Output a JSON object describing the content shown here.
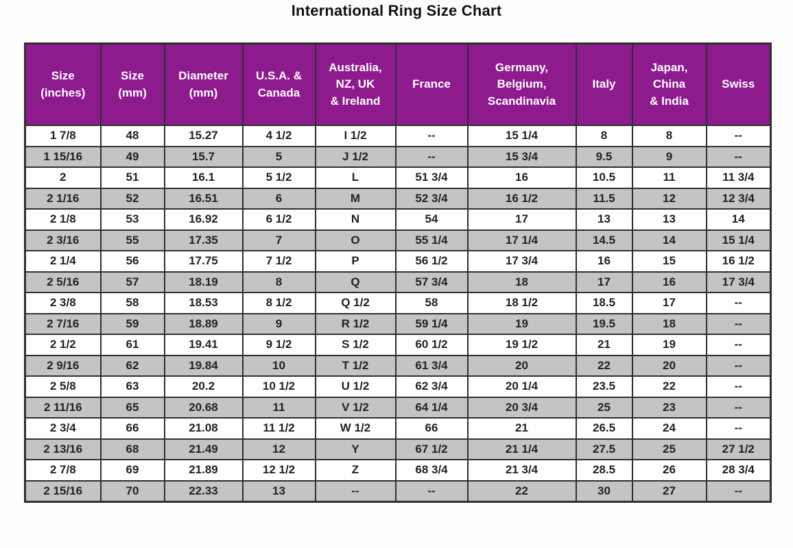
{
  "page": {
    "title": "International Ring Size Chart"
  },
  "chart_data": {
    "type": "table",
    "title": "International Ring Size Chart",
    "columns": [
      "Size\n(inches)",
      "Size\n(mm)",
      "Diameter\n(mm)",
      "U.S.A. &\nCanada",
      "Australia,\nNZ, UK\n& Ireland",
      "France",
      "Germany,\nBelgium,\nScandinavia",
      "Italy",
      "Japan,\nChina\n& India",
      "Swiss"
    ],
    "rows": [
      [
        "1 7/8",
        "48",
        "15.27",
        "4 1/2",
        "I 1/2",
        "--",
        "15 1/4",
        "8",
        "8",
        "--"
      ],
      [
        "1 15/16",
        "49",
        "15.7",
        "5",
        "J 1/2",
        "--",
        "15 3/4",
        "9.5",
        "9",
        "--"
      ],
      [
        "2",
        "51",
        "16.1",
        "5 1/2",
        "L",
        "51 3/4",
        "16",
        "10.5",
        "11",
        "11 3/4"
      ],
      [
        "2 1/16",
        "52",
        "16.51",
        "6",
        "M",
        "52 3/4",
        "16 1/2",
        "11.5",
        "12",
        "12 3/4"
      ],
      [
        "2 1/8",
        "53",
        "16.92",
        "6 1/2",
        "N",
        "54",
        "17",
        "13",
        "13",
        "14"
      ],
      [
        "2 3/16",
        "55",
        "17.35",
        "7",
        "O",
        "55 1/4",
        "17 1/4",
        "14.5",
        "14",
        "15 1/4"
      ],
      [
        "2 1/4",
        "56",
        "17.75",
        "7 1/2",
        "P",
        "56 1/2",
        "17 3/4",
        "16",
        "15",
        "16 1/2"
      ],
      [
        "2 5/16",
        "57",
        "18.19",
        "8",
        "Q",
        "57 3/4",
        "18",
        "17",
        "16",
        "17 3/4"
      ],
      [
        "2 3/8",
        "58",
        "18.53",
        "8 1/2",
        "Q 1/2",
        "58",
        "18 1/2",
        "18.5",
        "17",
        "--"
      ],
      [
        "2 7/16",
        "59",
        "18.89",
        "9",
        "R 1/2",
        "59 1/4",
        "19",
        "19.5",
        "18",
        "--"
      ],
      [
        "2 1/2",
        "61",
        "19.41",
        "9 1/2",
        "S 1/2",
        "60 1/2",
        "19 1/2",
        "21",
        "19",
        "--"
      ],
      [
        "2 9/16",
        "62",
        "19.84",
        "10",
        "T 1/2",
        "61 3/4",
        "20",
        "22",
        "20",
        "--"
      ],
      [
        "2 5/8",
        "63",
        "20.2",
        "10 1/2",
        "U 1/2",
        "62 3/4",
        "20 1/4",
        "23.5",
        "22",
        "--"
      ],
      [
        "2 11/16",
        "65",
        "20.68",
        "11",
        "V 1/2",
        "64 1/4",
        "20 3/4",
        "25",
        "23",
        "--"
      ],
      [
        "2 3/4",
        "66",
        "21.08",
        "11 1/2",
        "W 1/2",
        "66",
        "21",
        "26.5",
        "24",
        "--"
      ],
      [
        "2 13/16",
        "68",
        "21.49",
        "12",
        "Y",
        "67 1/2",
        "21 1/4",
        "27.5",
        "25",
        "27 1/2"
      ],
      [
        "2 7/8",
        "69",
        "21.89",
        "12 1/2",
        "Z",
        "68 3/4",
        "21 3/4",
        "28.5",
        "26",
        "28 3/4"
      ],
      [
        "2 15/16",
        "70",
        "22.33",
        "13",
        "--",
        "--",
        "22",
        "30",
        "27",
        "--"
      ]
    ],
    "colors": {
      "header_bg": "#8e1b8e",
      "header_text": "#ffffff",
      "row_bg": "#ffffff",
      "row_alt_bg": "#c4c4c4",
      "border": "#2f2f2f",
      "title_text": "#111111"
    },
    "layout": {
      "grid": "on",
      "striped": true,
      "header_position": "top"
    }
  }
}
